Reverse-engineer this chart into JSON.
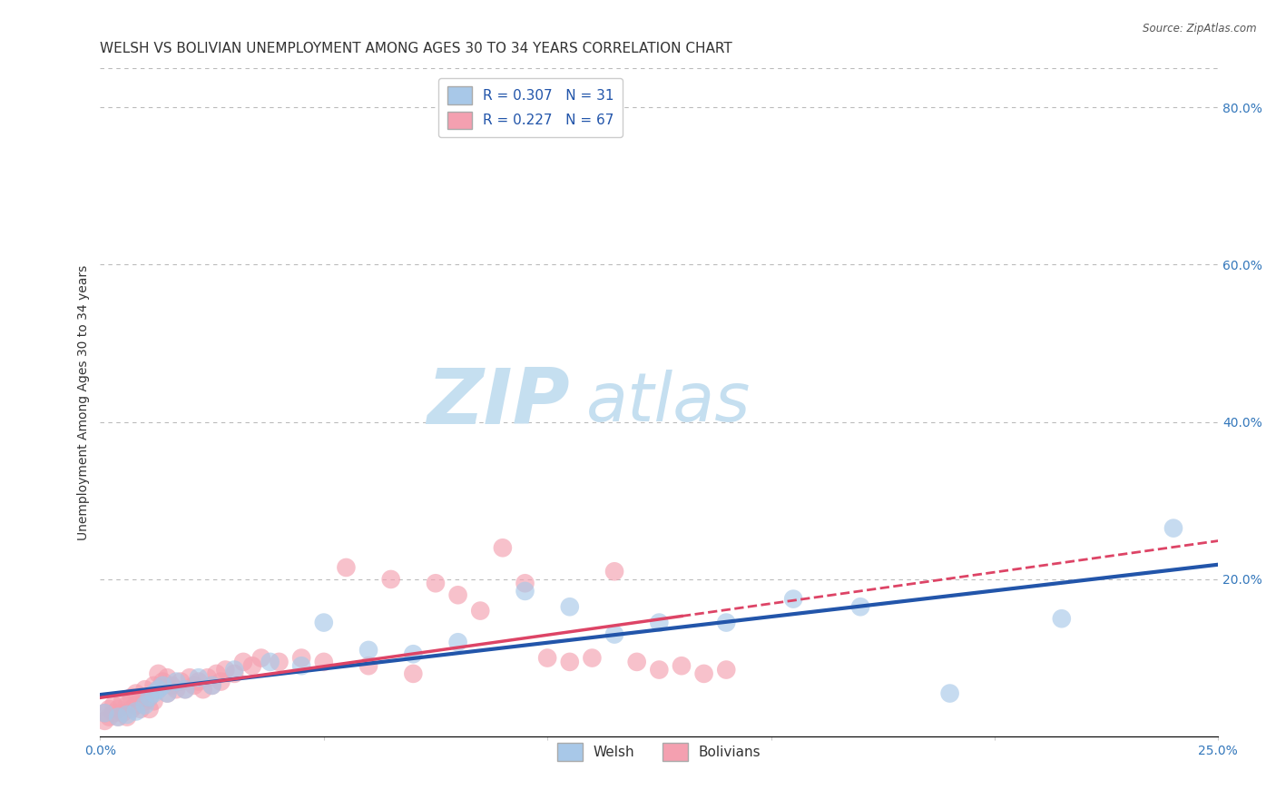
{
  "title": "WELSH VS BOLIVIAN UNEMPLOYMENT AMONG AGES 30 TO 34 YEARS CORRELATION CHART",
  "source": "Source: ZipAtlas.com",
  "ylabel": "Unemployment Among Ages 30 to 34 years",
  "xlim": [
    0.0,
    0.25
  ],
  "ylim": [
    0.0,
    0.85
  ],
  "xticks": [
    0.0,
    0.05,
    0.1,
    0.15,
    0.2,
    0.25
  ],
  "xticklabels": [
    "0.0%",
    "",
    "",
    "",
    "",
    "25.0%"
  ],
  "yticks_right": [
    0.0,
    0.2,
    0.4,
    0.6,
    0.8
  ],
  "yticklabels_right": [
    "",
    "20.0%",
    "40.0%",
    "60.0%",
    "80.0%"
  ],
  "welsh_color": "#a8c8e8",
  "bolivian_color": "#f4a0b0",
  "welsh_line_color": "#2255aa",
  "bolivian_line_color": "#dd4466",
  "welsh_R": 0.307,
  "welsh_N": 31,
  "bolivian_R": 0.227,
  "bolivian_N": 67,
  "background_color": "#ffffff",
  "grid_color": "#bbbbbb",
  "welsh_x": [
    0.001,
    0.004,
    0.006,
    0.008,
    0.01,
    0.011,
    0.012,
    0.013,
    0.014,
    0.015,
    0.017,
    0.019,
    0.022,
    0.025,
    0.03,
    0.038,
    0.045,
    0.05,
    0.06,
    0.07,
    0.08,
    0.095,
    0.105,
    0.115,
    0.125,
    0.14,
    0.155,
    0.17,
    0.19,
    0.215,
    0.24
  ],
  "welsh_y": [
    0.03,
    0.025,
    0.028,
    0.032,
    0.04,
    0.05,
    0.055,
    0.06,
    0.065,
    0.055,
    0.07,
    0.06,
    0.075,
    0.065,
    0.085,
    0.095,
    0.09,
    0.145,
    0.11,
    0.105,
    0.12,
    0.185,
    0.165,
    0.13,
    0.145,
    0.145,
    0.175,
    0.165,
    0.055,
    0.15,
    0.265
  ],
  "bolivian_x": [
    0.001,
    0.001,
    0.002,
    0.002,
    0.003,
    0.003,
    0.004,
    0.004,
    0.005,
    0.005,
    0.006,
    0.006,
    0.007,
    0.007,
    0.008,
    0.008,
    0.009,
    0.009,
    0.01,
    0.01,
    0.011,
    0.011,
    0.012,
    0.012,
    0.013,
    0.013,
    0.014,
    0.015,
    0.015,
    0.016,
    0.017,
    0.018,
    0.019,
    0.02,
    0.021,
    0.022,
    0.023,
    0.024,
    0.025,
    0.026,
    0.027,
    0.028,
    0.03,
    0.032,
    0.034,
    0.036,
    0.04,
    0.045,
    0.05,
    0.055,
    0.06,
    0.065,
    0.07,
    0.075,
    0.08,
    0.085,
    0.09,
    0.095,
    0.1,
    0.105,
    0.11,
    0.115,
    0.12,
    0.125,
    0.13,
    0.135,
    0.14
  ],
  "bolivian_y": [
    0.02,
    0.03,
    0.025,
    0.035,
    0.03,
    0.04,
    0.025,
    0.035,
    0.03,
    0.045,
    0.025,
    0.04,
    0.035,
    0.05,
    0.04,
    0.055,
    0.035,
    0.05,
    0.045,
    0.06,
    0.035,
    0.05,
    0.045,
    0.065,
    0.06,
    0.08,
    0.07,
    0.055,
    0.075,
    0.065,
    0.06,
    0.07,
    0.06,
    0.075,
    0.065,
    0.07,
    0.06,
    0.075,
    0.065,
    0.08,
    0.07,
    0.085,
    0.08,
    0.095,
    0.09,
    0.1,
    0.095,
    0.1,
    0.095,
    0.215,
    0.09,
    0.2,
    0.08,
    0.195,
    0.18,
    0.16,
    0.24,
    0.195,
    0.1,
    0.095,
    0.1,
    0.21,
    0.095,
    0.085,
    0.09,
    0.08,
    0.085
  ],
  "watermark_zip": "ZIP",
  "watermark_atlas": "atlas",
  "watermark_color_zip": "#c5dff0",
  "watermark_color_atlas": "#c5dff0",
  "title_fontsize": 11,
  "axis_label_fontsize": 10,
  "tick_fontsize": 10,
  "legend_fontsize": 11
}
